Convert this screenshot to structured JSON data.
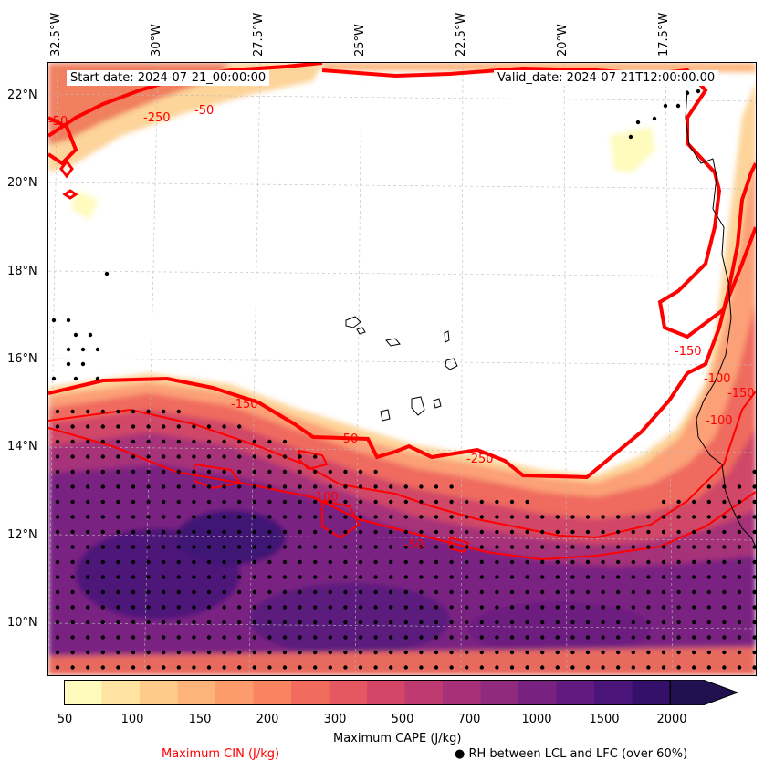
{
  "info": {
    "start_date": "Start date: 2024-07-21_00:00:00",
    "valid_date": "Valid_date: 2024-07-21T12:00:00.00"
  },
  "axes": {
    "lon_labels": [
      "32.5°W",
      "30°W",
      "27.5°W",
      "25°W",
      "22.5°W",
      "20°W",
      "17.5°W"
    ],
    "lat_labels": [
      "22°N",
      "20°N",
      "18°N",
      "16°N",
      "14°N",
      "12°N",
      "10°N"
    ]
  },
  "contour_labels": [
    "-50",
    "-250",
    "-50",
    "-150",
    "-50",
    "-250",
    "-100",
    "-50",
    "-150",
    "-100",
    "-150",
    "-100"
  ],
  "colorbar": {
    "title": "Maximum CAPE (J/kg)",
    "ticks": [
      "50",
      "100",
      "150",
      "200",
      "300",
      "500",
      "700",
      "1000",
      "1500",
      "2000"
    ],
    "colors": [
      "#fefbbd",
      "#fee3a1",
      "#fecb8a",
      "#fdb47a",
      "#fc9c6c",
      "#f98462",
      "#f26c5d",
      "#e55761",
      "#d34667",
      "#bd3b71",
      "#a6317a",
      "#8f2a7f",
      "#792181",
      "#631a80",
      "#4b1478",
      "#35106a",
      "#221150"
    ]
  },
  "legend": {
    "cin_label": "Maximum CIN (J/kg)",
    "cin_color": "#ff0000",
    "dot_symbol": "●",
    "rh_label": "RH between LCL and LFC (over 60%)"
  }
}
